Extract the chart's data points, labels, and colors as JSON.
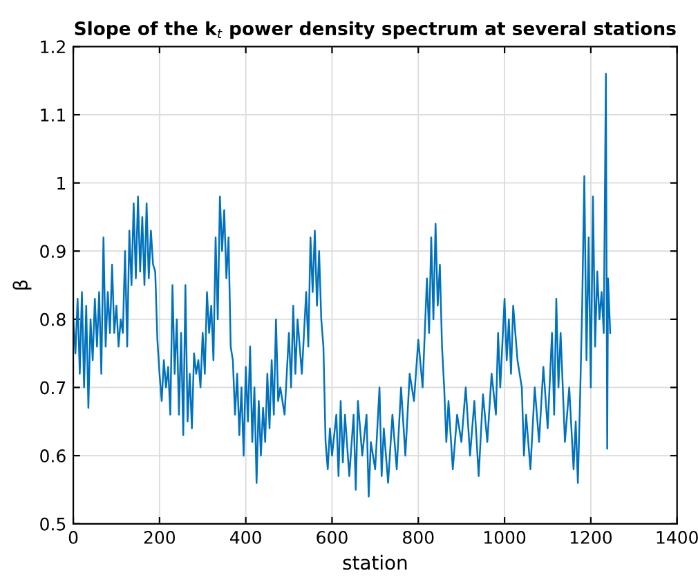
{
  "chart_data": {
    "type": "line",
    "title": "Slope of the k$_{t}$ power density spectrum at several stations",
    "xlabel": "station",
    "ylabel": "β",
    "x": [
      0,
      5,
      10,
      15,
      20,
      25,
      30,
      35,
      40,
      45,
      50,
      55,
      60,
      65,
      70,
      75,
      80,
      85,
      90,
      95,
      100,
      105,
      110,
      115,
      120,
      125,
      130,
      135,
      140,
      145,
      150,
      155,
      160,
      165,
      170,
      175,
      180,
      185,
      190,
      195,
      200,
      205,
      210,
      215,
      220,
      225,
      230,
      235,
      240,
      245,
      250,
      255,
      260,
      265,
      270,
      275,
      280,
      285,
      290,
      295,
      300,
      305,
      310,
      315,
      320,
      325,
      330,
      335,
      340,
      345,
      350,
      355,
      360,
      365,
      370,
      375,
      380,
      385,
      390,
      395,
      400,
      405,
      410,
      415,
      420,
      425,
      430,
      435,
      440,
      445,
      450,
      455,
      460,
      465,
      470,
      475,
      480,
      490,
      500,
      505,
      510,
      515,
      520,
      530,
      540,
      545,
      550,
      555,
      560,
      565,
      570,
      575,
      580,
      585,
      590,
      595,
      600,
      610,
      615,
      620,
      625,
      630,
      640,
      650,
      655,
      660,
      670,
      680,
      685,
      690,
      700,
      710,
      715,
      720,
      730,
      740,
      750,
      760,
      770,
      780,
      790,
      800,
      810,
      820,
      825,
      830,
      835,
      840,
      845,
      850,
      855,
      860,
      865,
      870,
      880,
      890,
      900,
      910,
      920,
      930,
      940,
      950,
      960,
      970,
      980,
      985,
      990,
      1000,
      1005,
      1010,
      1015,
      1020,
      1030,
      1040,
      1045,
      1050,
      1060,
      1070,
      1080,
      1090,
      1100,
      1110,
      1115,
      1120,
      1125,
      1130,
      1140,
      1150,
      1160,
      1165,
      1170,
      1175,
      1180,
      1185,
      1190,
      1195,
      1200,
      1205,
      1210,
      1215,
      1220,
      1225,
      1230,
      1235,
      1238,
      1240,
      1245
    ],
    "series": [
      {
        "color": "#0072bd",
        "values": [
          0.8,
          0.75,
          0.83,
          0.72,
          0.84,
          0.7,
          0.82,
          0.67,
          0.8,
          0.74,
          0.83,
          0.76,
          0.84,
          0.72,
          0.92,
          0.76,
          0.84,
          0.78,
          0.88,
          0.78,
          0.82,
          0.76,
          0.8,
          0.78,
          0.9,
          0.76,
          0.93,
          0.85,
          0.97,
          0.86,
          0.98,
          0.87,
          0.95,
          0.85,
          0.97,
          0.86,
          0.93,
          0.88,
          0.87,
          0.77,
          0.72,
          0.68,
          0.74,
          0.7,
          0.73,
          0.66,
          0.85,
          0.72,
          0.8,
          0.66,
          0.78,
          0.63,
          0.85,
          0.65,
          0.72,
          0.64,
          0.75,
          0.72,
          0.74,
          0.7,
          0.78,
          0.72,
          0.84,
          0.78,
          0.82,
          0.74,
          0.92,
          0.8,
          0.98,
          0.9,
          0.96,
          0.86,
          0.92,
          0.76,
          0.74,
          0.66,
          0.72,
          0.63,
          0.7,
          0.6,
          0.73,
          0.65,
          0.76,
          0.62,
          0.7,
          0.56,
          0.68,
          0.6,
          0.67,
          0.62,
          0.72,
          0.64,
          0.74,
          0.66,
          0.8,
          0.68,
          0.7,
          0.66,
          0.78,
          0.7,
          0.82,
          0.72,
          0.8,
          0.72,
          0.84,
          0.76,
          0.92,
          0.84,
          0.93,
          0.82,
          0.9,
          0.8,
          0.76,
          0.62,
          0.58,
          0.64,
          0.6,
          0.66,
          0.57,
          0.68,
          0.59,
          0.66,
          0.57,
          0.66,
          0.55,
          0.68,
          0.6,
          0.66,
          0.54,
          0.62,
          0.58,
          0.7,
          0.57,
          0.64,
          0.56,
          0.66,
          0.58,
          0.7,
          0.6,
          0.72,
          0.68,
          0.77,
          0.7,
          0.86,
          0.78,
          0.92,
          0.8,
          0.94,
          0.82,
          0.88,
          0.76,
          0.7,
          0.62,
          0.68,
          0.58,
          0.66,
          0.62,
          0.7,
          0.6,
          0.68,
          0.57,
          0.69,
          0.62,
          0.72,
          0.66,
          0.78,
          0.7,
          0.83,
          0.74,
          0.8,
          0.72,
          0.82,
          0.74,
          0.7,
          0.6,
          0.66,
          0.58,
          0.7,
          0.62,
          0.73,
          0.64,
          0.78,
          0.66,
          0.83,
          0.7,
          0.78,
          0.62,
          0.7,
          0.58,
          0.65,
          0.56,
          0.68,
          0.82,
          1.01,
          0.74,
          0.92,
          0.7,
          0.98,
          0.76,
          0.87,
          0.8,
          0.84,
          0.78,
          1.16,
          0.61,
          0.86,
          0.78
        ]
      }
    ],
    "xlim": [
      0,
      1400
    ],
    "xticks": [
      0,
      200,
      400,
      600,
      800,
      1000,
      1200,
      1400
    ],
    "ylim": [
      0.5,
      1.2
    ],
    "yticks": [
      0.5,
      0.6,
      0.7,
      0.8,
      0.9,
      1,
      1.1,
      1.2
    ],
    "grid": true
  }
}
